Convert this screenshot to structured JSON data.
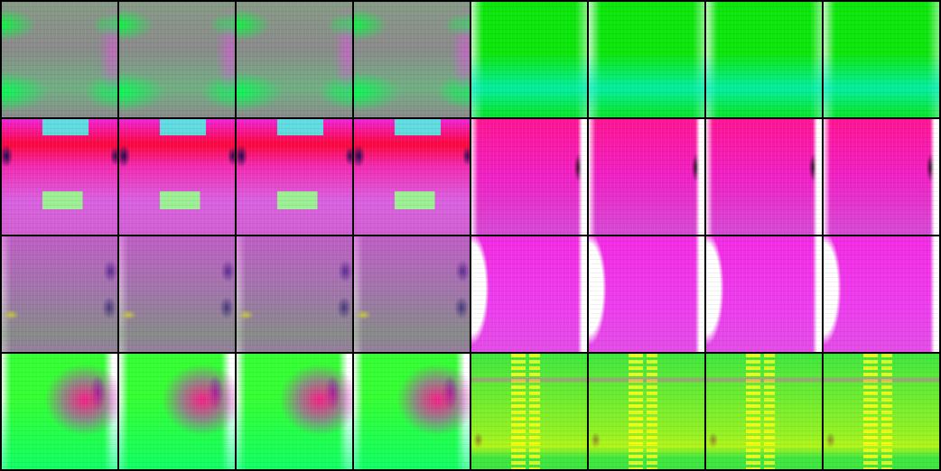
{
  "tiles": [
    {
      "variant": "r1a"
    },
    {
      "variant": "r1a"
    },
    {
      "variant": "r1a"
    },
    {
      "variant": "r1a"
    },
    {
      "variant": "r1b"
    },
    {
      "variant": "r1b"
    },
    {
      "variant": "r1b"
    },
    {
      "variant": "r1b"
    },
    {
      "variant": "r2a"
    },
    {
      "variant": "r2a"
    },
    {
      "variant": "r2a"
    },
    {
      "variant": "r2a"
    },
    {
      "variant": "r2b"
    },
    {
      "variant": "r2b"
    },
    {
      "variant": "r2b"
    },
    {
      "variant": "r2b"
    },
    {
      "variant": "r3a"
    },
    {
      "variant": "r3a"
    },
    {
      "variant": "r3a"
    },
    {
      "variant": "r3a"
    },
    {
      "variant": "r3b"
    },
    {
      "variant": "r3b"
    },
    {
      "variant": "r3b"
    },
    {
      "variant": "r3b"
    },
    {
      "variant": "r4a"
    },
    {
      "variant": "r4a"
    },
    {
      "variant": "r4a"
    },
    {
      "variant": "r4a"
    },
    {
      "variant": "r4b"
    },
    {
      "variant": "r4b"
    },
    {
      "variant": "r4b"
    },
    {
      "variant": "r4b"
    }
  ],
  "colors": {
    "background": "#000000",
    "gray": "#8a8a8a",
    "green": "#0be60b",
    "cyan": "#00f0d2",
    "magenta": "#e63ce6",
    "red": "#ff0028",
    "pink": "#ff1493",
    "violet": "#9a7aa8",
    "dark_blue": "#140a6e",
    "yellow": "#ffff1e",
    "white": "#ffffff"
  }
}
